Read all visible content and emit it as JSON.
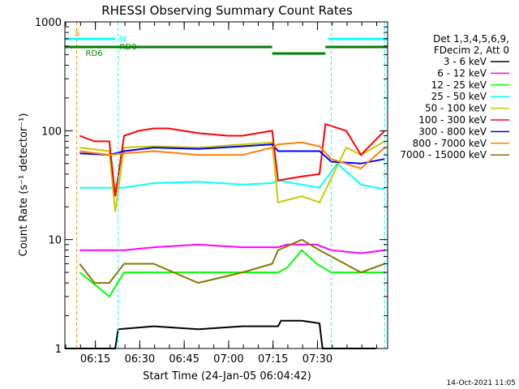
{
  "chart_data": {
    "type": "line",
    "title": "RHESSI Observing Summary Count Rates",
    "xlabel": "Start Time (24-Jan-05 06:04:42)",
    "ylabel": "Count Rate (s⁻¹ detector⁻¹)",
    "x_unit": "minutes after 06:04:42",
    "xlim": [
      0,
      109
    ],
    "ylim": [
      1,
      1000
    ],
    "yscale": "log",
    "x_ticks": [
      "06:15",
      "06:30",
      "06:45",
      "07:00",
      "07:15",
      "07:30"
    ],
    "y_ticks": [
      "1",
      "10",
      "100",
      "1000"
    ],
    "grid": false,
    "legend_position": "top-right",
    "legend_header": [
      "Det 1,3,4,5,6,9,",
      "FDecim 2, Att 0"
    ],
    "series": [
      {
        "name": "3 - 6 keV",
        "color": "#000000",
        "x": [
          0,
          17,
          18,
          30,
          45,
          60,
          72,
          73,
          80,
          86,
          87,
          100,
          105
        ],
        "values": [
          1,
          1,
          1.5,
          1.6,
          1.5,
          1.6,
          1.6,
          1.8,
          1.8,
          1.7,
          1,
          1,
          1
        ]
      },
      {
        "name": "6 - 12 keV",
        "color": "#ff00ff",
        "x": [
          5,
          15,
          20,
          30,
          45,
          60,
          72,
          75,
          80,
          85,
          90,
          100,
          108
        ],
        "values": [
          8,
          8,
          8,
          8.5,
          9,
          8.5,
          8.5,
          9,
          9,
          9,
          8,
          7.5,
          8
        ]
      },
      {
        "name": "12 - 25 keV",
        "color": "#00ff00",
        "x": [
          5,
          15,
          20,
          30,
          45,
          60,
          72,
          75,
          80,
          85,
          90,
          100,
          108
        ],
        "values": [
          5,
          3,
          5,
          5,
          5,
          5,
          5,
          5.5,
          8,
          6,
          5,
          5,
          5
        ]
      },
      {
        "name": "25 - 50 keV",
        "color": "#00ffff",
        "x": [
          5,
          10,
          15,
          20,
          30,
          45,
          60,
          70,
          72,
          80,
          86,
          92,
          100,
          108
        ],
        "values": [
          30,
          30,
          30,
          30,
          33,
          34,
          32,
          33,
          35,
          32,
          30,
          50,
          32,
          29
        ]
      },
      {
        "name": "50 - 100 keV",
        "color": "#c8c800",
        "x": [
          5,
          15,
          17,
          20,
          30,
          45,
          60,
          70,
          72,
          80,
          86,
          95,
          100,
          108
        ],
        "values": [
          70,
          65,
          18,
          70,
          72,
          70,
          75,
          78,
          22,
          25,
          22,
          70,
          60,
          80
        ]
      },
      {
        "name": "100 - 300 keV",
        "color": "#ff0000",
        "x": [
          5,
          10,
          15,
          17,
          20,
          25,
          30,
          35,
          45,
          55,
          60,
          70,
          72,
          80,
          86,
          88,
          95,
          100,
          108
        ],
        "values": [
          90,
          80,
          80,
          25,
          90,
          100,
          105,
          105,
          95,
          90,
          90,
          100,
          35,
          38,
          40,
          115,
          100,
          60,
          100
        ]
      },
      {
        "name": "300 - 800 keV",
        "color": "#0000ff",
        "x": [
          5,
          15,
          20,
          30,
          45,
          60,
          70,
          72,
          80,
          86,
          90,
          100,
          108
        ],
        "values": [
          62,
          60,
          65,
          70,
          68,
          72,
          75,
          65,
          65,
          65,
          52,
          50,
          55
        ]
      },
      {
        "name": "800 - 7000 keV",
        "color": "#ff8000",
        "x": [
          5,
          15,
          20,
          30,
          45,
          60,
          70,
          72,
          80,
          86,
          90,
          100,
          108
        ],
        "values": [
          65,
          60,
          62,
          65,
          60,
          60,
          70,
          75,
          78,
          72,
          55,
          45,
          70
        ]
      },
      {
        "name": "7000 - 15000 keV",
        "color": "#8b7500",
        "x": [
          5,
          10,
          15,
          20,
          30,
          45,
          60,
          70,
          72,
          80,
          86,
          90,
          100,
          108
        ],
        "values": [
          6,
          4,
          4,
          6,
          6,
          4,
          5,
          6,
          8,
          10,
          8,
          7,
          5,
          6
        ]
      }
    ],
    "annotations": [
      {
        "text": "S",
        "color": "#ff8c00"
      },
      {
        "text": "N",
        "color": "#00ffff"
      },
      {
        "text": "RD0",
        "color": "#008000"
      },
      {
        "text": "RD6",
        "color": "#008000"
      }
    ],
    "footer_date": "14-Oct-2021 11:05"
  },
  "colors": {
    "background": "#ffffff",
    "axes": "#000000",
    "saa_line": "#00ffff",
    "eclipse_line": "#ff8c00",
    "flag_green": "#008000"
  }
}
